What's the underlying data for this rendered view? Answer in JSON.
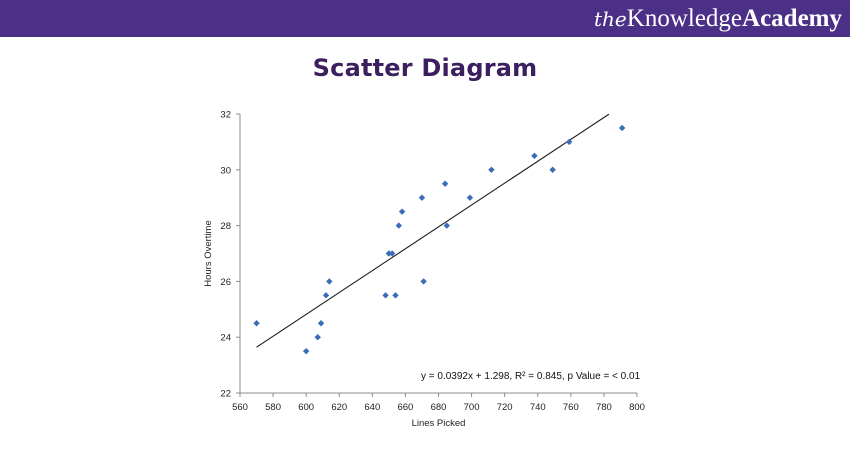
{
  "header": {
    "brand_the": "the",
    "brand_knowledge": "Knowledge",
    "brand_academy": "Academy",
    "bg_color": "#4c2f86"
  },
  "page_title": "Scatter Diagram",
  "chart_data": {
    "type": "scatter",
    "title": "",
    "xlabel": "Lines Picked",
    "ylabel": "Hours Overtime",
    "xlim": [
      560,
      800
    ],
    "ylim": [
      22,
      32
    ],
    "xticks": [
      560,
      580,
      600,
      620,
      640,
      660,
      680,
      700,
      720,
      740,
      760,
      780,
      800
    ],
    "yticks": [
      22,
      24,
      26,
      28,
      30,
      32
    ],
    "grid": false,
    "point_color": "#3a6db5",
    "series": [
      {
        "x": [
          570,
          600,
          607,
          609,
          612,
          614,
          648,
          650,
          652,
          654,
          656,
          658,
          670,
          671,
          684,
          685,
          699,
          712,
          738,
          749,
          759,
          791
        ],
        "y": [
          24.5,
          23.5,
          24.0,
          24.5,
          25.5,
          26.0,
          25.5,
          27.0,
          27.0,
          25.5,
          28.0,
          28.5,
          29.0,
          26.0,
          29.5,
          28.0,
          29.0,
          30.0,
          30.5,
          30.0,
          31.0,
          31.5
        ]
      }
    ],
    "trendline": {
      "x": [
        570,
        783
      ],
      "slope": 0.0392,
      "intercept": 1.298
    },
    "annotation": "y = 0.0392x + 1.298, R² = 0.845, p Value =  < 0.01"
  }
}
